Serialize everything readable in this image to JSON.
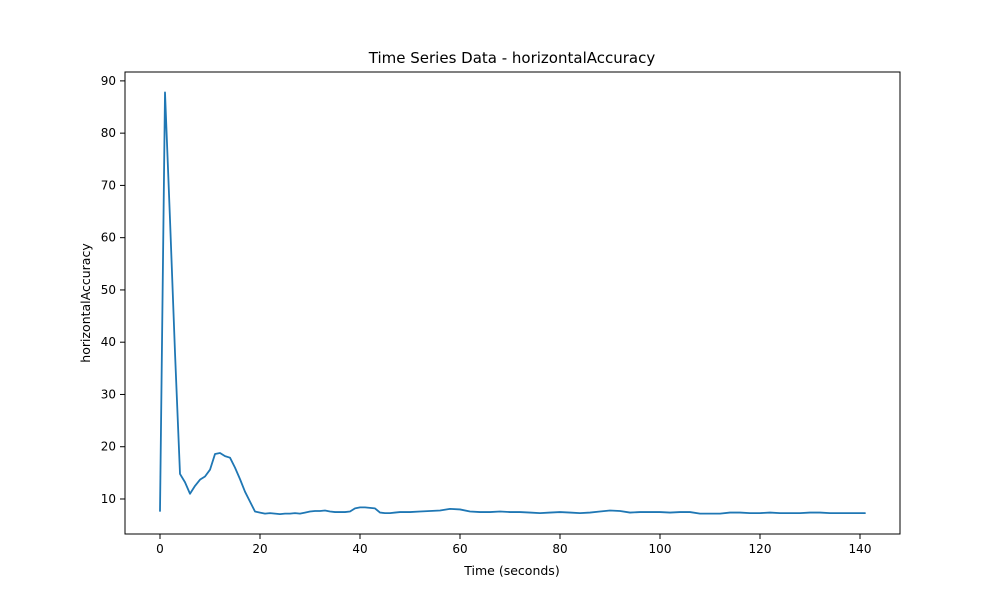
{
  "chart_data": {
    "type": "line",
    "title": "Time Series Data - horizontalAccuracy",
    "xlabel": "Time (seconds)",
    "ylabel": "horizontalAccuracy",
    "xlim": [
      -7,
      148
    ],
    "ylim": [
      3.3,
      91.7
    ],
    "xticks": [
      0,
      20,
      40,
      60,
      80,
      100,
      120,
      140
    ],
    "yticks": [
      10,
      20,
      30,
      40,
      50,
      60,
      70,
      80,
      90
    ],
    "grid": false,
    "line_color": "#1f77b4",
    "series": [
      {
        "x": [
          0,
          1,
          2,
          3,
          4,
          5,
          6,
          7,
          8,
          9,
          10,
          11,
          12,
          13,
          14,
          15,
          16,
          17,
          18,
          19,
          20,
          21,
          22,
          23,
          24,
          25,
          26,
          27,
          28,
          29,
          30,
          31,
          32,
          33,
          34,
          35,
          36,
          37,
          38,
          39,
          40,
          41,
          42,
          43,
          44,
          45,
          46,
          47,
          48,
          49,
          50,
          52,
          54,
          56,
          58,
          60,
          62,
          64,
          66,
          68,
          70,
          72,
          74,
          76,
          78,
          80,
          82,
          84,
          86,
          88,
          90,
          92,
          94,
          96,
          98,
          100,
          102,
          104,
          106,
          108,
          110,
          112,
          114,
          116,
          118,
          120,
          122,
          124,
          126,
          128,
          130,
          132,
          134,
          136,
          138,
          140,
          141
        ],
        "y": [
          7.7,
          87.8,
          63.5,
          38,
          14.8,
          13.2,
          11,
          12.5,
          13.7,
          14.3,
          15.6,
          18.6,
          18.8,
          18.2,
          17.9,
          16,
          13.8,
          11.4,
          9.5,
          7.6,
          7.4,
          7.2,
          7.3,
          7.2,
          7.1,
          7.2,
          7.2,
          7.3,
          7.2,
          7.4,
          7.6,
          7.7,
          7.7,
          7.8,
          7.6,
          7.5,
          7.5,
          7.5,
          7.6,
          8.2,
          8.4,
          8.4,
          8.3,
          8.2,
          7.4,
          7.3,
          7.3,
          7.4,
          7.5,
          7.5,
          7.5,
          7.6,
          7.7,
          7.8,
          8.1,
          8.0,
          7.6,
          7.5,
          7.5,
          7.6,
          7.5,
          7.5,
          7.4,
          7.3,
          7.4,
          7.5,
          7.4,
          7.3,
          7.4,
          7.6,
          7.8,
          7.7,
          7.4,
          7.5,
          7.5,
          7.5,
          7.4,
          7.5,
          7.5,
          7.2,
          7.2,
          7.2,
          7.4,
          7.4,
          7.3,
          7.3,
          7.4,
          7.3,
          7.3,
          7.3,
          7.4,
          7.4,
          7.3,
          7.3,
          7.3,
          7.3,
          7.3
        ]
      }
    ]
  }
}
